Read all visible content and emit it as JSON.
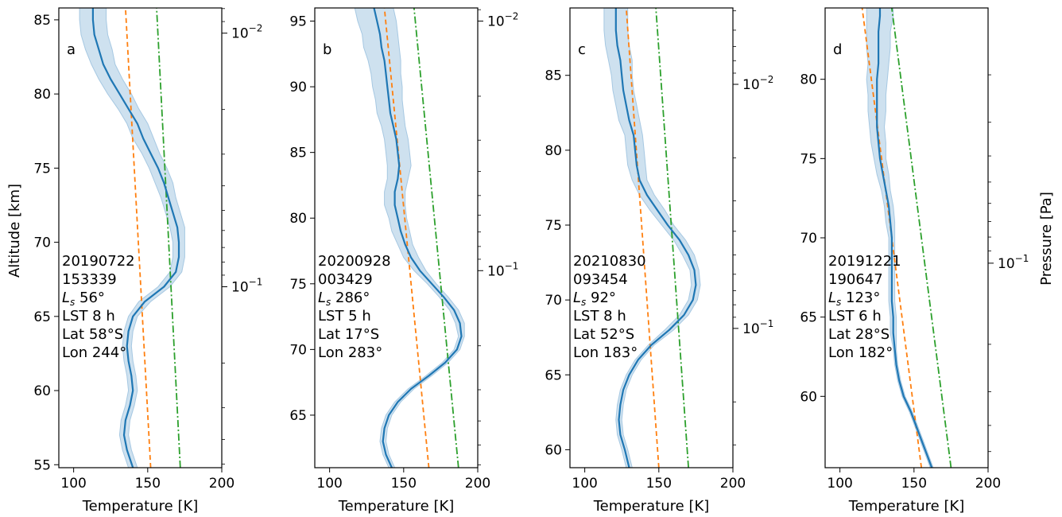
{
  "figure": {
    "y_axis_label": "Altitude [km]",
    "right_axis_label": "Pressure [Pa]",
    "colors": {
      "observed": "#1f77b4",
      "band": "#a6c8e2",
      "lower_bound": "#ff7f0e",
      "upper_bound": "#2ca02c"
    }
  },
  "chart_data": [
    {
      "type": "line",
      "panel": "a",
      "xlabel": "Temperature [K]",
      "xlim": [
        90,
        200
      ],
      "xticks": [
        100,
        150,
        200
      ],
      "ylim": [
        54.8,
        85.8
      ],
      "yticks": [
        55,
        60,
        65,
        70,
        75,
        80,
        85
      ],
      "right_ticks": [
        {
          "label": "10^-2",
          "alt": 84.1
        },
        {
          "label": "10^-1",
          "alt": 67.0
        }
      ],
      "annotation": [
        "20190722",
        "153339",
        "Ls 56°",
        "LST 8 h",
        "Lat 58°S",
        "Lon 244°"
      ],
      "observed": {
        "altitude": [
          54.8,
          56,
          57,
          58,
          59,
          60,
          61,
          62,
          63,
          64,
          65,
          66,
          67,
          68,
          69,
          70,
          71,
          72,
          73,
          74,
          75,
          76,
          77,
          78,
          79,
          80,
          81,
          82,
          83,
          84,
          85,
          85.8
        ],
        "temperature": [
          140,
          136,
          134,
          135,
          138,
          140,
          139,
          137,
          136,
          137,
          140,
          148,
          161,
          169,
          171,
          171,
          170,
          167,
          164,
          161,
          157,
          152,
          147,
          143,
          137,
          131,
          125,
          120,
          117,
          114,
          113,
          113
        ],
        "std": [
          3,
          3,
          3,
          3,
          3,
          3,
          3,
          3,
          3,
          3,
          3,
          4,
          4,
          4,
          4,
          4,
          5,
          5,
          5,
          6,
          6,
          6,
          7,
          7,
          7,
          8,
          8,
          8,
          9,
          9,
          9,
          9
        ]
      },
      "orange_line": {
        "altitude": [
          54.8,
          85.8
        ],
        "temperature": [
          152,
          135
        ]
      },
      "green_line": {
        "altitude": [
          54.8,
          85.8
        ],
        "temperature": [
          172,
          156
        ]
      }
    },
    {
      "type": "line",
      "panel": "b",
      "xlabel": "Temperature [K]",
      "xlim": [
        90,
        200
      ],
      "xticks": [
        100,
        150,
        200
      ],
      "ylim": [
        61,
        96
      ],
      "yticks": [
        65,
        70,
        75,
        80,
        85,
        90,
        95
      ],
      "right_ticks": [
        {
          "label": "10^-2",
          "alt": 95.0
        },
        {
          "label": "10^-1",
          "alt": 76.0
        }
      ],
      "annotation": [
        "20200928",
        "003429",
        "Ls 286°",
        "LST 5 h",
        "Lat 17°S",
        "Lon 283°"
      ],
      "observed": {
        "altitude": [
          61,
          62,
          63,
          64,
          65,
          66,
          67,
          68,
          69,
          70,
          71,
          72,
          73,
          74,
          75,
          76,
          77,
          78,
          79,
          80,
          81,
          82,
          83,
          84,
          85,
          86,
          87,
          88,
          89,
          90,
          91,
          92,
          93,
          94,
          95,
          96
        ],
        "temperature": [
          142,
          138,
          136,
          137,
          140,
          146,
          155,
          167,
          178,
          186,
          189,
          188,
          184,
          177,
          169,
          161,
          155,
          151,
          148,
          146,
          144,
          144,
          146,
          147,
          146,
          145,
          143,
          141,
          140,
          139,
          138,
          137,
          135,
          134,
          132,
          130
        ],
        "std": [
          2,
          2,
          2,
          2,
          2,
          2,
          2,
          2,
          2,
          2,
          2,
          3,
          3,
          3,
          3,
          4,
          5,
          5,
          6,
          6,
          7,
          7,
          7,
          8,
          8,
          8,
          8,
          9,
          9,
          10,
          10,
          11,
          12,
          12,
          13,
          13
        ]
      },
      "orange_line": {
        "altitude": [
          61,
          96
        ],
        "temperature": [
          167,
          137
        ]
      },
      "green_line": {
        "altitude": [
          61,
          96
        ],
        "temperature": [
          187,
          157
        ]
      }
    },
    {
      "type": "line",
      "panel": "c",
      "xlabel": "Temperature [K]",
      "xlim": [
        90,
        200
      ],
      "xticks": [
        100,
        150,
        200
      ],
      "ylim": [
        58.8,
        89.5
      ],
      "yticks": [
        60,
        65,
        70,
        75,
        80,
        85
      ],
      "right_ticks": [
        {
          "label": "10^-2",
          "alt": 84.4
        },
        {
          "label": "10^-1",
          "alt": 68.1
        }
      ],
      "annotation": [
        "20210830",
        "093454",
        "Ls 92°",
        "LST 8 h",
        "Lat 52°S",
        "Lon 183°"
      ],
      "observed": {
        "altitude": [
          58.8,
          60,
          61,
          62,
          63,
          64,
          65,
          66,
          67,
          68,
          69,
          70,
          71,
          72,
          73,
          74,
          75,
          76,
          77,
          78,
          79,
          80,
          81,
          82,
          83,
          84,
          85,
          86,
          87,
          88,
          89,
          89.5
        ],
        "temperature": [
          130,
          127,
          124,
          123,
          124,
          126,
          130,
          136,
          145,
          157,
          167,
          173,
          175,
          174,
          170,
          164,
          156,
          149,
          142,
          137,
          135,
          134,
          133,
          130,
          128,
          126,
          125,
          124,
          122,
          121,
          121,
          121
        ],
        "std": [
          2,
          2,
          2,
          2,
          2,
          2,
          2,
          2,
          2,
          3,
          3,
          3,
          3,
          3,
          4,
          4,
          4,
          5,
          5,
          5,
          6,
          6,
          6,
          7,
          7,
          7,
          7,
          8,
          8,
          8,
          8,
          8
        ]
      },
      "orange_line": {
        "altitude": [
          58.8,
          89.5
        ],
        "temperature": [
          150,
          128
        ]
      },
      "green_line": {
        "altitude": [
          58.8,
          89.5
        ],
        "temperature": [
          170,
          148
        ]
      }
    },
    {
      "type": "line",
      "panel": "d",
      "xlabel": "Temperature [K]",
      "xlim": [
        90,
        200
      ],
      "xticks": [
        100,
        150,
        200
      ],
      "ylim": [
        55.5,
        84.5
      ],
      "yticks": [
        60,
        65,
        70,
        75,
        80
      ],
      "right_ticks": [
        {
          "label": "10^-1",
          "alt": 68.4
        }
      ],
      "annotation": [
        "20191221",
        "190647",
        "Ls 123°",
        "LST 6 h",
        "Lat 28°S",
        "Lon 182°"
      ],
      "observed": {
        "altitude": [
          55.5,
          56,
          57,
          58,
          59,
          60,
          61,
          62,
          63,
          64,
          65,
          66,
          67,
          68,
          69,
          70,
          71,
          72,
          73,
          74,
          75,
          76,
          77,
          78,
          79,
          80,
          81,
          82,
          83,
          84,
          84.5
        ],
        "temperature": [
          162,
          160,
          156,
          152,
          148,
          143,
          140,
          138,
          137,
          136,
          136,
          135,
          135,
          135,
          135,
          135,
          134,
          133,
          131,
          129,
          127,
          126,
          125,
          125,
          125,
          125,
          126,
          126,
          126,
          127,
          127
        ],
        "std": [
          1,
          1,
          1,
          1,
          1,
          1,
          1,
          1,
          1,
          2,
          2,
          2,
          2,
          2,
          2,
          2,
          3,
          3,
          3,
          4,
          4,
          5,
          5,
          6,
          6,
          7,
          7,
          8,
          8,
          9,
          9
        ]
      },
      "orange_line": {
        "altitude": [
          55.5,
          84.5
        ],
        "temperature": [
          155,
          115
        ]
      },
      "green_line": {
        "altitude": [
          55.5,
          84.5
        ],
        "temperature": [
          175,
          135
        ]
      }
    }
  ]
}
